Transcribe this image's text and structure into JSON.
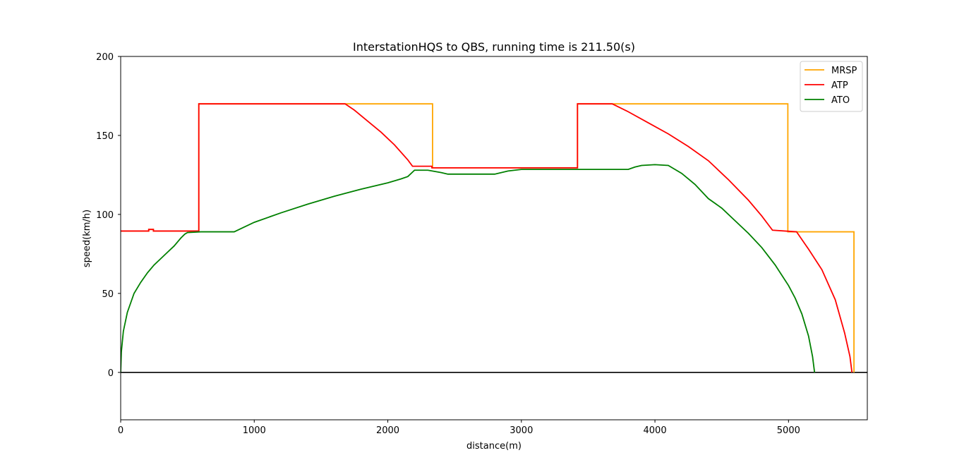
{
  "chart_data": {
    "type": "line",
    "title": "InterstationHQS to QBS, running time is 211.50(s)",
    "xlabel": "distance(m)",
    "ylabel": "speed(km/h)",
    "xlim": [
      0,
      5590
    ],
    "ylim": [
      -30,
      200
    ],
    "xticks": [
      0,
      1000,
      2000,
      3000,
      4000,
      5000
    ],
    "yticks": [
      0,
      50,
      100,
      150,
      200
    ],
    "grid": false,
    "legend_position": "top-right",
    "reference_lines": [
      {
        "y": 0,
        "color": "#000000"
      }
    ],
    "series": [
      {
        "name": "MRSP",
        "color": "#ffa500",
        "step": true,
        "points": [
          [
            0,
            89.5
          ],
          [
            210,
            89.5
          ],
          [
            210,
            90.5
          ],
          [
            245,
            90.5
          ],
          [
            245,
            89.5
          ],
          [
            585,
            89.5
          ],
          [
            585,
            170
          ],
          [
            2335,
            170
          ],
          [
            2335,
            129.5
          ],
          [
            3420,
            129.5
          ],
          [
            3420,
            170
          ],
          [
            4995,
            170
          ],
          [
            4995,
            89
          ],
          [
            5490,
            89
          ],
          [
            5490,
            0
          ]
        ]
      },
      {
        "name": "ATP",
        "color": "#ff0000",
        "step": true,
        "points": [
          [
            0,
            89.5
          ],
          [
            210,
            89.5
          ],
          [
            210,
            90.5
          ],
          [
            245,
            90.5
          ],
          [
            245,
            89.5
          ],
          [
            585,
            89.5
          ],
          [
            585,
            170
          ],
          [
            1680,
            170
          ],
          [
            1750,
            166
          ],
          [
            1850,
            159
          ],
          [
            1950,
            152
          ],
          [
            2050,
            144
          ],
          [
            2150,
            134.5
          ],
          [
            2185,
            130.5
          ],
          [
            2330,
            130.5
          ],
          [
            2330,
            129.5
          ],
          [
            3420,
            129.5
          ],
          [
            3420,
            170
          ],
          [
            3680,
            170
          ],
          [
            3800,
            165
          ],
          [
            3950,
            158
          ],
          [
            4100,
            151
          ],
          [
            4250,
            143
          ],
          [
            4400,
            134
          ],
          [
            4550,
            122
          ],
          [
            4700,
            109
          ],
          [
            4800,
            99
          ],
          [
            4880,
            90
          ],
          [
            5060,
            89
          ],
          [
            5150,
            78
          ],
          [
            5250,
            65
          ],
          [
            5350,
            46
          ],
          [
            5420,
            25
          ],
          [
            5460,
            10
          ],
          [
            5475,
            0
          ]
        ]
      },
      {
        "name": "ATO",
        "color": "#008000",
        "step": false,
        "points": [
          [
            0,
            0
          ],
          [
            5,
            13
          ],
          [
            20,
            26
          ],
          [
            50,
            38
          ],
          [
            100,
            50
          ],
          [
            150,
            57
          ],
          [
            200,
            63
          ],
          [
            250,
            68
          ],
          [
            300,
            72
          ],
          [
            350,
            76
          ],
          [
            400,
            80
          ],
          [
            450,
            85
          ],
          [
            480,
            87.5
          ],
          [
            500,
            88.5
          ],
          [
            600,
            89
          ],
          [
            850,
            89
          ],
          [
            900,
            91
          ],
          [
            1000,
            95
          ],
          [
            1200,
            101
          ],
          [
            1400,
            106.5
          ],
          [
            1600,
            111.5
          ],
          [
            1800,
            116
          ],
          [
            2000,
            120
          ],
          [
            2100,
            122.5
          ],
          [
            2150,
            124
          ],
          [
            2200,
            128
          ],
          [
            2300,
            128
          ],
          [
            2400,
            126.5
          ],
          [
            2450,
            125.5
          ],
          [
            2800,
            125.5
          ],
          [
            2900,
            127.5
          ],
          [
            3000,
            128.5
          ],
          [
            3800,
            128.5
          ],
          [
            3850,
            130
          ],
          [
            3900,
            131
          ],
          [
            4000,
            131.5
          ],
          [
            4100,
            131
          ],
          [
            4200,
            126
          ],
          [
            4300,
            119
          ],
          [
            4400,
            110
          ],
          [
            4500,
            104
          ],
          [
            4600,
            96
          ],
          [
            4700,
            88
          ],
          [
            4800,
            79
          ],
          [
            4900,
            68
          ],
          [
            5000,
            55
          ],
          [
            5050,
            47
          ],
          [
            5100,
            37
          ],
          [
            5150,
            23
          ],
          [
            5180,
            10
          ],
          [
            5195,
            0
          ]
        ]
      }
    ]
  }
}
